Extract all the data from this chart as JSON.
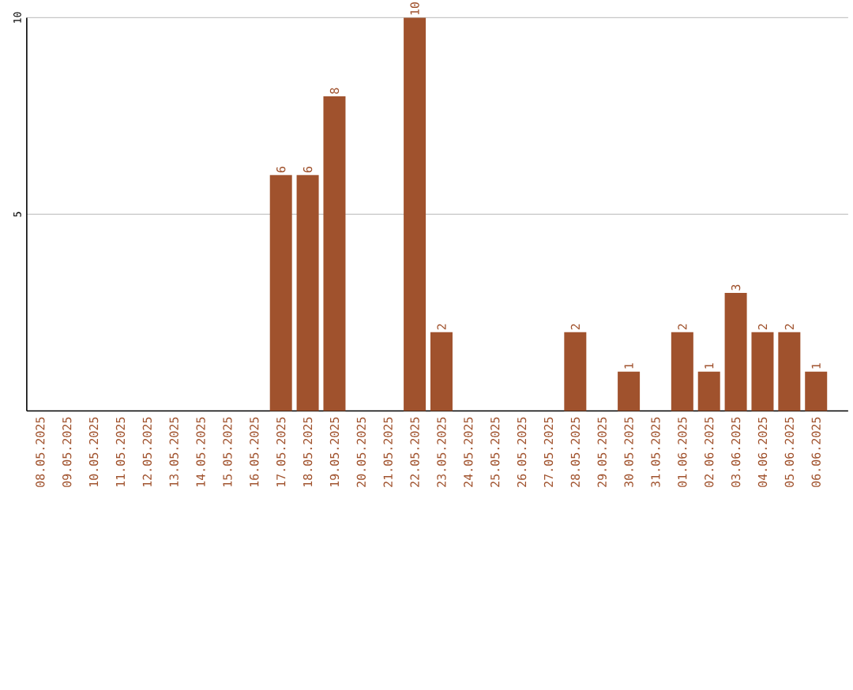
{
  "chart_data": {
    "type": "bar",
    "categories": [
      "08.05.2025",
      "09.05.2025",
      "10.05.2025",
      "11.05.2025",
      "12.05.2025",
      "13.05.2025",
      "14.05.2025",
      "15.05.2025",
      "16.05.2025",
      "17.05.2025",
      "18.05.2025",
      "19.05.2025",
      "20.05.2025",
      "21.05.2025",
      "22.05.2025",
      "23.05.2025",
      "24.05.2025",
      "25.05.2025",
      "26.05.2025",
      "27.05.2025",
      "28.05.2025",
      "29.05.2025",
      "30.05.2025",
      "31.05.2025",
      "01.06.2025",
      "02.06.2025",
      "03.06.2025",
      "04.06.2025",
      "05.06.2025",
      "06.06.2025"
    ],
    "values": [
      0,
      0,
      0,
      0,
      0,
      0,
      0,
      0,
      0,
      6,
      6,
      8,
      0,
      0,
      10,
      2,
      0,
      0,
      0,
      0,
      2,
      0,
      1,
      0,
      2,
      1,
      3,
      2,
      2,
      1
    ],
    "value_labels": [
      null,
      null,
      null,
      null,
      null,
      null,
      null,
      null,
      null,
      "6",
      "6",
      "8",
      null,
      null,
      "10",
      "2",
      null,
      null,
      null,
      null,
      "2",
      null,
      "1",
      null,
      "2",
      "1",
      "3",
      "2",
      "2",
      "1"
    ],
    "color": "#a0522d",
    "ylim": [
      0,
      10
    ],
    "yticks": [
      5,
      10
    ],
    "grid": "y"
  }
}
